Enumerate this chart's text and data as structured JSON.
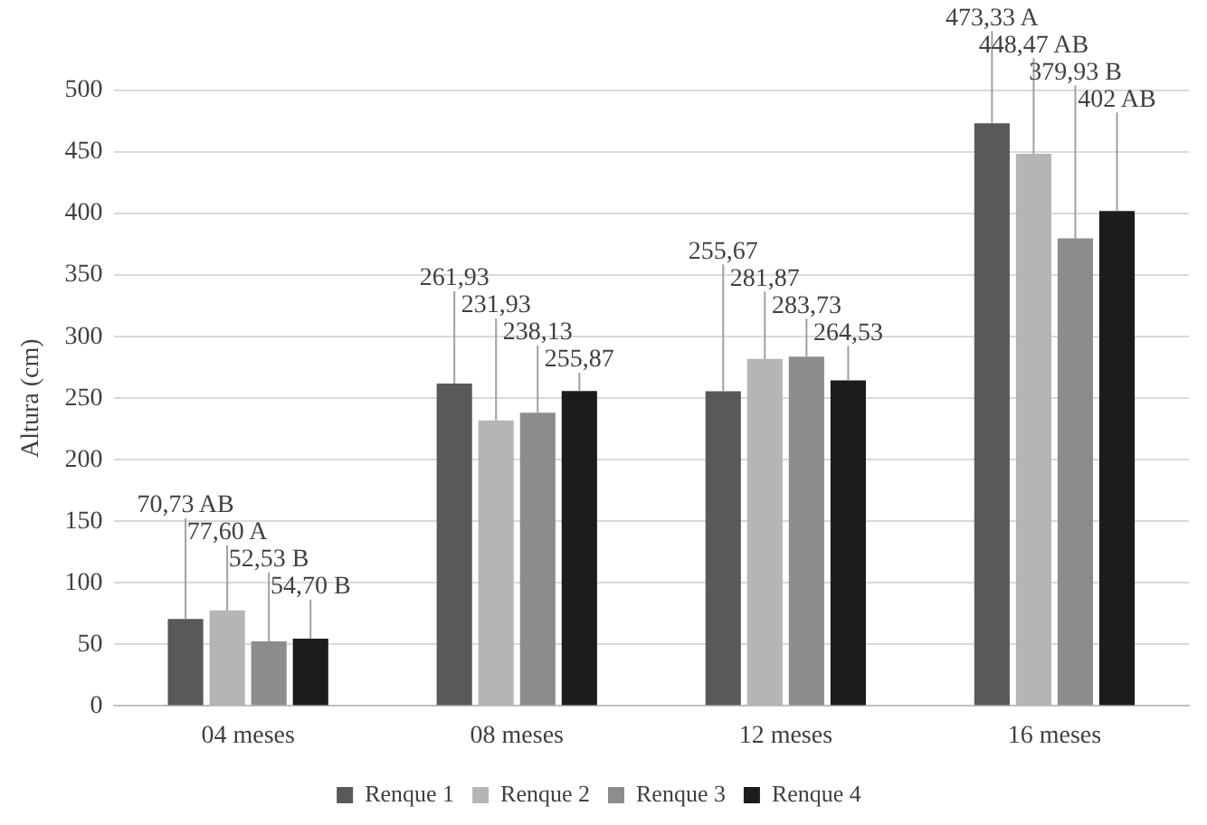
{
  "chart_data": {
    "type": "bar",
    "ylabel": "Altura (cm)",
    "categories": [
      "04 meses",
      "08 meses",
      "12 meses",
      "16 meses"
    ],
    "series": [
      {
        "name": "Renque 1",
        "color": "#595959",
        "values": [
          70.73,
          261.93,
          255.67,
          473.33
        ],
        "value_labels": [
          "70,73 AB",
          "261,93",
          "255,67",
          "473,33 A"
        ]
      },
      {
        "name": "Renque 2",
        "color": "#b5b5b5",
        "values": [
          77.6,
          231.93,
          281.87,
          448.47
        ],
        "value_labels": [
          "77,60 A",
          "231,93",
          "281,87",
          "448,47 AB"
        ]
      },
      {
        "name": "Renque 3",
        "color": "#8c8c8c",
        "values": [
          52.53,
          238.13,
          283.73,
          379.93
        ],
        "value_labels": [
          "52,53 B",
          "238,13",
          "283,73",
          "379,93 B"
        ]
      },
      {
        "name": "Renque 4",
        "color": "#1c1c1c",
        "values": [
          54.7,
          255.87,
          264.53,
          402
        ],
        "value_labels": [
          "54,70 B",
          "255,87",
          "264,53",
          "402 AB"
        ]
      }
    ],
    "ylim": [
      0,
      500
    ],
    "yticks": [
      0,
      50,
      100,
      150,
      200,
      250,
      300,
      350,
      400,
      450,
      500
    ],
    "grid": "y",
    "legend": "bottom"
  }
}
